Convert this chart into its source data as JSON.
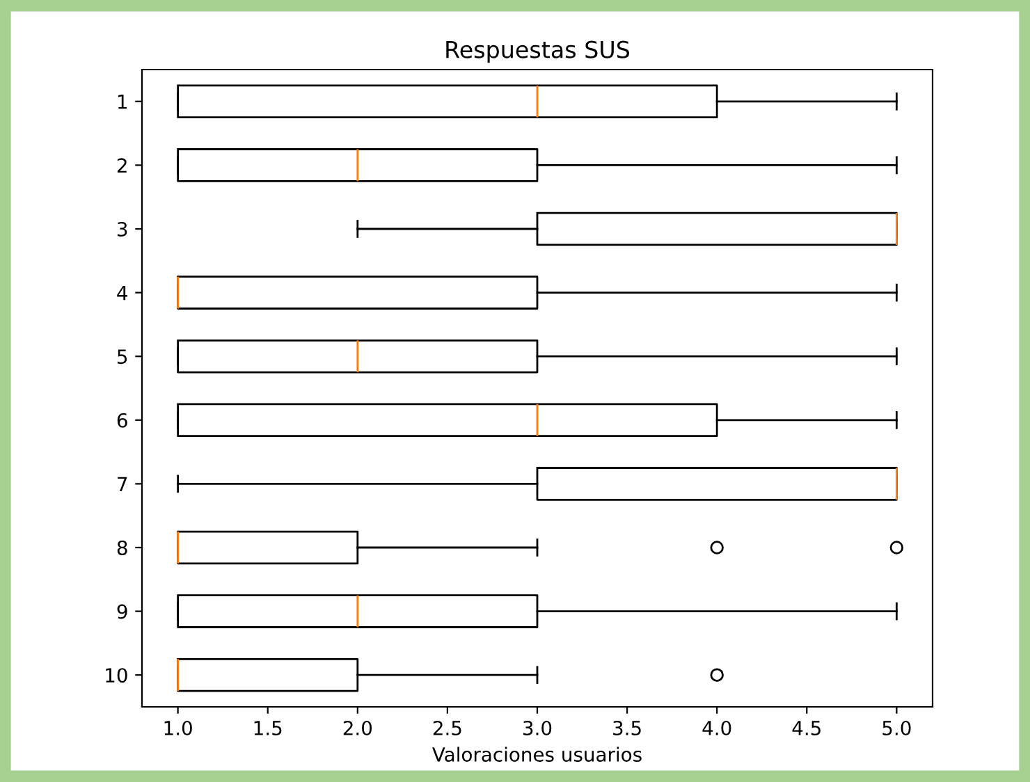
{
  "chart_data": {
    "type": "box",
    "title": "Respuestas SUS",
    "xlabel": "Valoraciones usuarios",
    "orientation": "horizontal",
    "categories": [
      "1",
      "2",
      "3",
      "4",
      "5",
      "6",
      "7",
      "8",
      "9",
      "10"
    ],
    "boxes": [
      {
        "low": 1,
        "q1": 1,
        "median": 3,
        "q3": 4,
        "high": 5
      },
      {
        "low": 1,
        "q1": 1,
        "median": 2,
        "q3": 3,
        "high": 5
      },
      {
        "low": 2,
        "q1": 3,
        "median": 5,
        "q3": 5,
        "high": 5
      },
      {
        "low": 1,
        "q1": 1,
        "median": 1,
        "q3": 3,
        "high": 5
      },
      {
        "low": 1,
        "q1": 1,
        "median": 2,
        "q3": 3,
        "high": 5
      },
      {
        "low": 1,
        "q1": 1,
        "median": 3,
        "q3": 4,
        "high": 5
      },
      {
        "low": 1,
        "q1": 3,
        "median": 5,
        "q3": 5,
        "high": 5
      },
      {
        "low": 1,
        "q1": 1,
        "median": 1,
        "q3": 2,
        "high": 3,
        "outliers": [
          4,
          5
        ]
      },
      {
        "low": 1,
        "q1": 1,
        "median": 2,
        "q3": 3,
        "high": 5
      },
      {
        "low": 1,
        "q1": 1,
        "median": 1,
        "q3": 2,
        "high": 3,
        "outliers": [
          4
        ]
      }
    ],
    "xlim": [
      0.8,
      5.2
    ],
    "xticks": [
      {
        "value": 1,
        "label": "1.0"
      },
      {
        "value": 1.5,
        "label": "1.5"
      },
      {
        "value": 2,
        "label": "2.0"
      },
      {
        "value": 2.5,
        "label": "2.5"
      },
      {
        "value": 3,
        "label": "3.0"
      },
      {
        "value": 3.5,
        "label": "3.5"
      },
      {
        "value": 4,
        "label": "4.0"
      },
      {
        "value": 4.5,
        "label": "4.5"
      },
      {
        "value": 5,
        "label": "5.0"
      }
    ]
  }
}
